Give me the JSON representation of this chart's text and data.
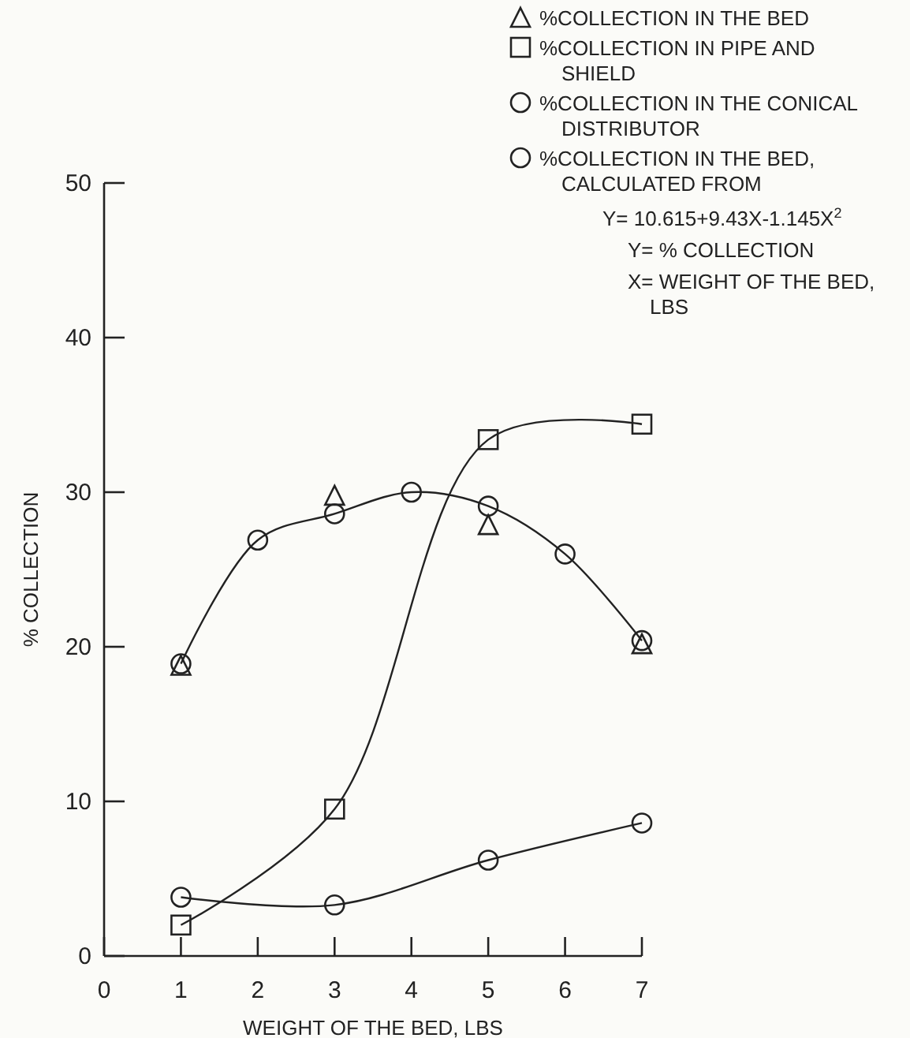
{
  "chart_data": {
    "type": "line",
    "xlabel": "WEIGHT OF THE BED, LBS",
    "ylabel": "% COLLECTION",
    "xlim": [
      0,
      7
    ],
    "xticks": [
      0,
      1,
      2,
      3,
      4,
      5,
      6,
      7
    ],
    "ylim": [
      0,
      50
    ],
    "yticks": [
      0,
      10,
      20,
      30,
      40,
      50
    ],
    "legend": "top right",
    "series": [
      {
        "name": "%COLLECTION IN THE BED",
        "type": "scatter",
        "marker": "triangle",
        "color": "#222222",
        "x": [
          1,
          3,
          5,
          7
        ],
        "values": [
          18.8,
          29.8,
          27.9,
          20.2
        ]
      },
      {
        "name": "%COLLECTION IN PIPE AND SHIELD",
        "marker": "square",
        "color": "#222222",
        "x": [
          1,
          3,
          5,
          7
        ],
        "values": [
          2.0,
          9.5,
          33.4,
          34.4
        ]
      },
      {
        "name": "%COLLECTION IN THE CONICAL DISTRIBUTOR",
        "marker": "circle",
        "color": "#222222",
        "x": [
          1,
          3,
          5,
          7
        ],
        "values": [
          3.8,
          3.3,
          6.2,
          8.6
        ]
      },
      {
        "name": "%COLLECTION IN THE BED, CALCULATED FROM",
        "marker": "circle",
        "color": "#222222",
        "x": [
          1,
          2,
          3,
          4,
          5,
          6,
          7
        ],
        "values": [
          18.9,
          26.9,
          28.6,
          30.0,
          29.1,
          26.0,
          20.4
        ]
      }
    ],
    "annotations": [
      "Y= 10.615+9.43X-1.145X$^{2}$",
      "Y= % COLLECTION",
      "X= WEIGHT OF THE BED, LBS"
    ]
  }
}
